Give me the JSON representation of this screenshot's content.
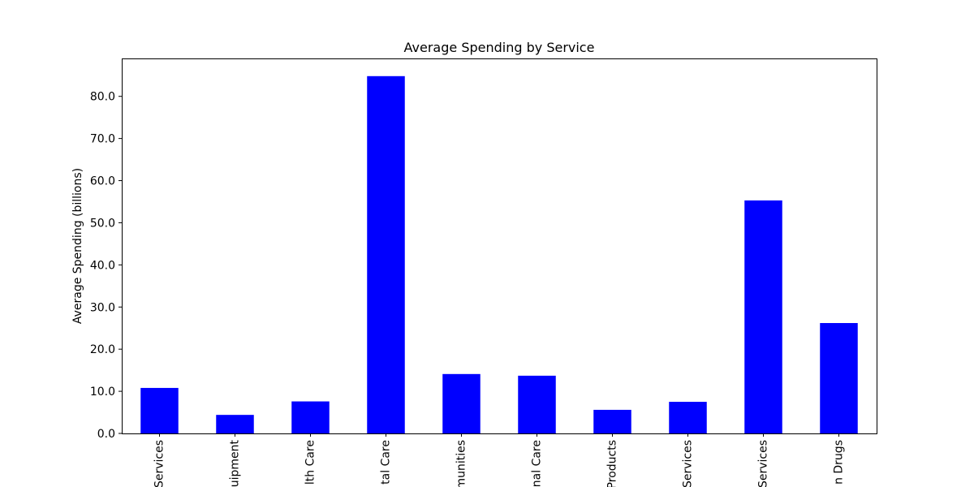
{
  "chart_data": {
    "type": "bar",
    "title": "Average Spending by Service",
    "xlabel": "",
    "ylabel": "Average Spending (billions)",
    "categories": [
      "Services",
      "uipment",
      "lth Care",
      "tal Care",
      "munities",
      "nal Care",
      "Products",
      "Services",
      "Services",
      "n Drugs"
    ],
    "values": [
      10.8,
      4.4,
      7.6,
      84.8,
      14.1,
      13.7,
      5.6,
      7.5,
      55.3,
      26.2
    ],
    "ylim": [
      0,
      89
    ],
    "yticks": [
      0,
      10,
      20,
      30,
      40,
      50,
      60,
      70,
      80
    ],
    "ytick_labels": [
      "0.0",
      "10.0",
      "20.0",
      "30.0",
      "40.0",
      "50.0",
      "60.0",
      "70.0",
      "80.0"
    ],
    "bar_color": "#0000ff",
    "grid": false,
    "legend": "none"
  }
}
